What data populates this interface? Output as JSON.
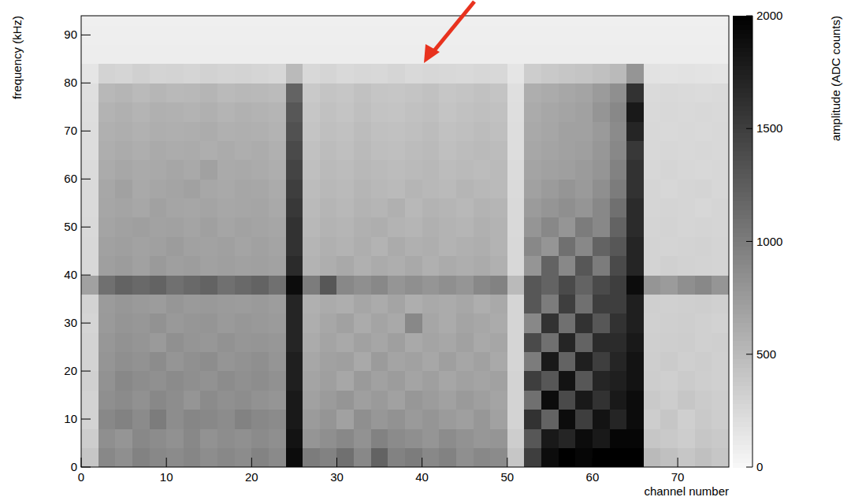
{
  "chart_data": {
    "type": "heatmap",
    "xlabel": "channel number",
    "ylabel": "frequency (kHz)",
    "xlim": [
      0,
      76
    ],
    "ylim": [
      0,
      94
    ],
    "xticks": [
      0,
      10,
      20,
      30,
      40,
      50,
      60,
      70
    ],
    "yticks": [
      0,
      10,
      20,
      30,
      40,
      50,
      60,
      70,
      80,
      90
    ],
    "x_bins": [
      0,
      2,
      4,
      6,
      8,
      10,
      12,
      14,
      16,
      18,
      20,
      22,
      24,
      26,
      28,
      30,
      32,
      34,
      36,
      38,
      40,
      42,
      44,
      46,
      48,
      50,
      52,
      54,
      56,
      58,
      60,
      62,
      64,
      66,
      68,
      70,
      72,
      74,
      76
    ],
    "y_bins": [
      0,
      4,
      8,
      12,
      16,
      20,
      24,
      28,
      32,
      36,
      40,
      44,
      48,
      52,
      56,
      60,
      64,
      68,
      72,
      76,
      80,
      84,
      88,
      92,
      96
    ],
    "cells": [
      [
        400,
        900,
        850,
        950,
        900,
        880,
        920,
        860,
        900,
        870,
        940,
        890,
        1900,
        1000,
        950,
        1100,
        900,
        1200,
        950,
        1000,
        900,
        950,
        850,
        900,
        880,
        400,
        1500,
        1900,
        2000,
        1950,
        2000,
        2000,
        2000,
        500,
        450,
        400,
        450,
        400
      ],
      [
        350,
        850,
        800,
        900,
        870,
        830,
        900,
        820,
        860,
        840,
        880,
        850,
        1850,
        800,
        850,
        900,
        820,
        950,
        880,
        850,
        800,
        870,
        820,
        780,
        800,
        350,
        1300,
        1800,
        1700,
        1900,
        1800,
        1950,
        1950,
        400,
        380,
        350,
        400,
        380
      ],
      [
        300,
        900,
        950,
        880,
        1000,
        860,
        920,
        900,
        870,
        950,
        900,
        880,
        1800,
        750,
        800,
        700,
        850,
        780,
        820,
        760,
        800,
        750,
        720,
        780,
        700,
        300,
        1600,
        1200,
        1900,
        1500,
        1850,
        1700,
        1900,
        350,
        400,
        330,
        380,
        350
      ],
      [
        300,
        850,
        880,
        830,
        900,
        860,
        800,
        880,
        840,
        860,
        820,
        800,
        1800,
        700,
        750,
        800,
        720,
        760,
        700,
        780,
        740,
        700,
        760,
        720,
        680,
        300,
        1100,
        1900,
        1400,
        1800,
        1600,
        1800,
        1900,
        380,
        350,
        400,
        360,
        340
      ],
      [
        320,
        820,
        900,
        860,
        840,
        880,
        850,
        820,
        870,
        840,
        860,
        830,
        1750,
        680,
        720,
        650,
        760,
        700,
        740,
        680,
        720,
        660,
        700,
        680,
        700,
        300,
        1500,
        1300,
        1850,
        1300,
        1700,
        1750,
        1850,
        350,
        330,
        360,
        340,
        320
      ],
      [
        300,
        800,
        850,
        820,
        870,
        800,
        840,
        860,
        800,
        820,
        850,
        800,
        1750,
        650,
        700,
        720,
        640,
        750,
        680,
        700,
        650,
        720,
        660,
        700,
        640,
        280,
        1000,
        1800,
        1200,
        1750,
        1500,
        1700,
        1850,
        340,
        360,
        330,
        350,
        320
      ],
      [
        300,
        780,
        820,
        800,
        760,
        840,
        800,
        780,
        820,
        790,
        800,
        780,
        1700,
        620,
        680,
        640,
        700,
        660,
        720,
        640,
        680,
        650,
        700,
        640,
        660,
        280,
        1400,
        1100,
        1700,
        1200,
        1650,
        1650,
        1800,
        330,
        340,
        350,
        320,
        330
      ],
      [
        280,
        760,
        800,
        780,
        820,
        770,
        790,
        800,
        760,
        780,
        770,
        750,
        1700,
        600,
        650,
        700,
        620,
        680,
        640,
        900,
        660,
        620,
        680,
        650,
        620,
        280,
        900,
        1600,
        1100,
        1600,
        1300,
        1600,
        1750,
        320,
        330,
        340,
        320,
        310
      ],
      [
        300,
        750,
        780,
        760,
        740,
        790,
        760,
        770,
        750,
        740,
        760,
        730,
        1700,
        580,
        620,
        600,
        660,
        620,
        680,
        600,
        640,
        620,
        650,
        600,
        640,
        280,
        1300,
        1000,
        1500,
        1100,
        1500,
        1500,
        1750,
        330,
        320,
        330,
        340,
        320
      ],
      [
        700,
        1100,
        1200,
        1150,
        1200,
        1100,
        1150,
        1200,
        1100,
        1150,
        1200,
        1100,
        1900,
        1000,
        1300,
        900,
        850,
        900,
        800,
        850,
        800,
        850,
        800,
        900,
        950,
        500,
        1300,
        1200,
        1400,
        1200,
        1400,
        1500,
        1900,
        800,
        750,
        850,
        900,
        800
      ],
      [
        260,
        720,
        740,
        700,
        760,
        720,
        730,
        700,
        720,
        700,
        710,
        690,
        1650,
        560,
        600,
        640,
        580,
        620,
        600,
        640,
        580,
        620,
        600,
        620,
        580,
        260,
        800,
        1200,
        900,
        1300,
        1000,
        1400,
        1700,
        300,
        320,
        310,
        300,
        290
      ],
      [
        260,
        700,
        720,
        690,
        710,
        740,
        700,
        690,
        710,
        680,
        700,
        680,
        1600,
        540,
        580,
        560,
        600,
        560,
        620,
        580,
        600,
        560,
        580,
        600,
        560,
        260,
        900,
        800,
        1100,
        900,
        1200,
        1300,
        1700,
        300,
        290,
        300,
        310,
        290
      ],
      [
        250,
        680,
        700,
        720,
        690,
        700,
        680,
        710,
        670,
        690,
        680,
        660,
        1600,
        520,
        560,
        540,
        580,
        600,
        560,
        540,
        580,
        560,
        540,
        580,
        560,
        250,
        800,
        900,
        800,
        1000,
        900,
        1200,
        1650,
        290,
        300,
        280,
        290,
        280
      ],
      [
        240,
        660,
        680,
        650,
        700,
        670,
        660,
        680,
        650,
        660,
        670,
        640,
        1550,
        500,
        540,
        520,
        560,
        540,
        580,
        520,
        560,
        540,
        520,
        560,
        540,
        250,
        750,
        800,
        850,
        800,
        900,
        1100,
        1650,
        280,
        290,
        280,
        270,
        280
      ],
      [
        240,
        650,
        700,
        640,
        660,
        680,
        700,
        650,
        640,
        660,
        650,
        620,
        1500,
        480,
        520,
        500,
        540,
        520,
        500,
        540,
        520,
        500,
        540,
        520,
        500,
        240,
        700,
        750,
        800,
        760,
        850,
        1000,
        1600,
        280,
        270,
        280,
        290,
        270
      ],
      [
        230,
        620,
        650,
        630,
        640,
        660,
        640,
        700,
        630,
        640,
        620,
        600,
        1450,
        460,
        500,
        480,
        520,
        500,
        480,
        500,
        520,
        480,
        500,
        480,
        500,
        230,
        680,
        700,
        720,
        750,
        800,
        950,
        1600,
        270,
        280,
        270,
        260,
        270
      ],
      [
        220,
        600,
        620,
        600,
        630,
        610,
        620,
        600,
        620,
        600,
        610,
        580,
        1400,
        440,
        480,
        460,
        500,
        470,
        460,
        480,
        500,
        460,
        480,
        500,
        480,
        220,
        650,
        680,
        700,
        720,
        780,
        900,
        1550,
        260,
        270,
        260,
        270,
        260
      ],
      [
        220,
        580,
        600,
        570,
        600,
        590,
        600,
        610,
        580,
        590,
        580,
        560,
        1350,
        420,
        460,
        440,
        480,
        450,
        440,
        460,
        480,
        440,
        460,
        480,
        460,
        220,
        640,
        660,
        700,
        700,
        760,
        880,
        1700,
        260,
        250,
        260,
        250,
        260
      ],
      [
        210,
        560,
        580,
        550,
        580,
        570,
        560,
        580,
        550,
        570,
        560,
        540,
        1300,
        400,
        440,
        420,
        460,
        430,
        420,
        440,
        460,
        420,
        440,
        460,
        440,
        210,
        620,
        650,
        680,
        700,
        800,
        900,
        1800,
        250,
        260,
        250,
        260,
        250
      ],
      [
        200,
        520,
        540,
        500,
        530,
        510,
        520,
        540,
        500,
        520,
        510,
        490,
        1200,
        380,
        420,
        400,
        440,
        410,
        400,
        420,
        440,
        400,
        420,
        440,
        420,
        200,
        600,
        620,
        650,
        680,
        750,
        850,
        1600,
        240,
        250,
        240,
        230,
        240
      ],
      [
        150,
        300,
        280,
        320,
        290,
        300,
        280,
        310,
        290,
        300,
        280,
        270,
        500,
        260,
        280,
        250,
        270,
        260,
        280,
        250,
        270,
        260,
        250,
        270,
        260,
        150,
        350,
        380,
        400,
        420,
        450,
        500,
        800,
        180,
        170,
        180,
        170,
        160
      ],
      [
        90,
        90,
        90,
        90,
        90,
        90,
        90,
        90,
        90,
        90,
        90,
        90,
        90,
        90,
        90,
        90,
        90,
        90,
        90,
        90,
        90,
        90,
        90,
        90,
        90,
        90,
        90,
        90,
        90,
        90,
        90,
        90,
        90,
        90,
        90,
        90,
        90,
        90
      ],
      [
        80,
        80,
        80,
        80,
        80,
        80,
        80,
        80,
        80,
        80,
        80,
        80,
        80,
        80,
        80,
        80,
        80,
        80,
        80,
        80,
        80,
        80,
        80,
        80,
        80,
        80,
        80,
        80,
        80,
        80,
        80,
        80,
        80,
        80,
        80,
        80,
        80,
        80
      ],
      [
        70,
        70,
        70,
        70,
        70,
        70,
        70,
        70,
        70,
        70,
        70,
        70,
        70,
        70,
        70,
        70,
        70,
        70,
        70,
        70,
        70,
        70,
        70,
        70,
        70,
        70,
        70,
        70,
        70,
        70,
        70,
        70,
        70,
        70,
        70,
        70,
        70,
        70
      ]
    ],
    "colorbar_label": "amplitude (ADC counts)",
    "colorbar_range": [
      0,
      2000
    ],
    "colorbar_ticks": [
      0,
      500,
      1000,
      1500,
      2000
    ]
  }
}
